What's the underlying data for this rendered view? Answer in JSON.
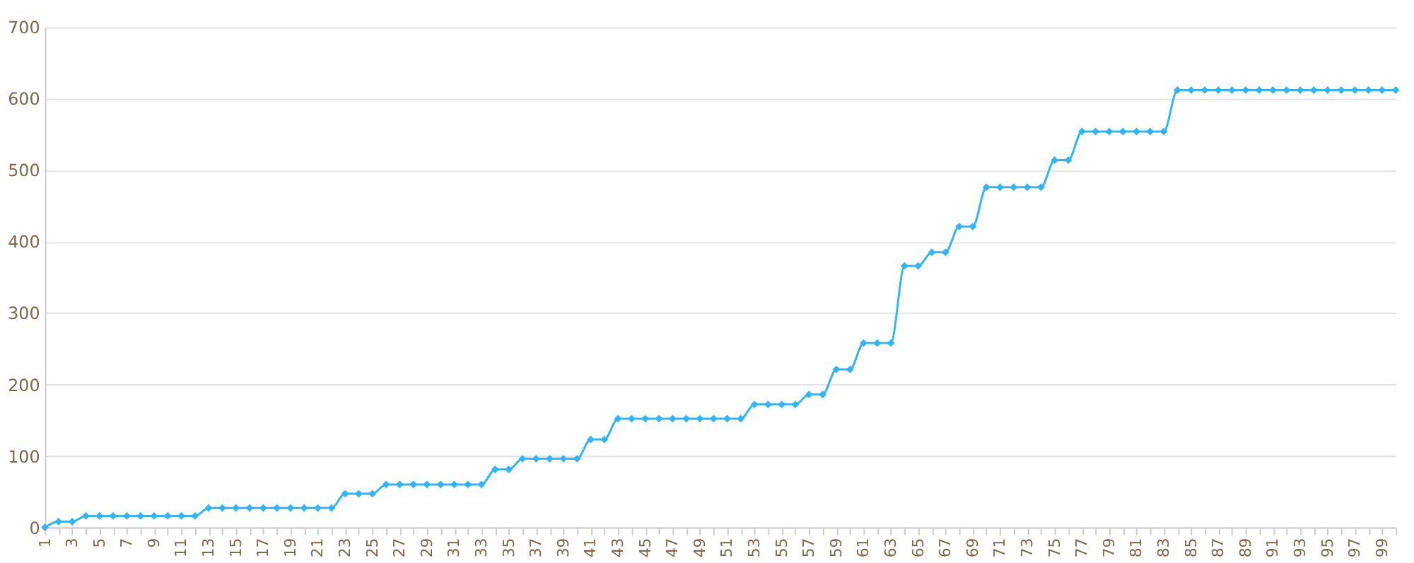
{
  "chart_data": {
    "type": "line",
    "categories": [
      "1",
      null,
      "3",
      null,
      "5",
      null,
      "7",
      null,
      "9",
      null,
      "11",
      null,
      "13",
      null,
      "15",
      null,
      "17",
      null,
      "19",
      null,
      "21",
      null,
      "23",
      null,
      "25",
      null,
      "27",
      null,
      "29",
      null,
      "31",
      null,
      "33",
      null,
      "35",
      null,
      "37",
      null,
      "39",
      null,
      "41",
      null,
      "43",
      null,
      "45",
      null,
      "47",
      null,
      "49",
      null,
      "51",
      null,
      "53",
      null,
      "55",
      null,
      "57",
      null,
      "59",
      null,
      "61",
      null,
      "63",
      null,
      "65",
      null,
      "67",
      null,
      "69",
      null,
      "71",
      null,
      "73",
      null,
      "75",
      null,
      "77",
      null,
      "79",
      null,
      "81",
      null,
      "83",
      null,
      "85",
      null,
      "87",
      null,
      "89",
      null,
      "91",
      null,
      "93",
      null,
      "95",
      null,
      "97",
      null,
      "99",
      null
    ],
    "series": [
      {
        "color": "#33b5f5",
        "values": [
          0,
          8,
          8,
          16,
          16,
          16,
          16,
          16,
          16,
          16,
          16,
          16,
          27,
          27,
          27,
          27,
          27,
          27,
          27,
          27,
          27,
          27,
          47,
          47,
          47,
          60,
          60,
          60,
          60,
          60,
          60,
          60,
          60,
          81,
          81,
          96,
          96,
          96,
          96,
          96,
          123,
          123,
          152,
          152,
          152,
          152,
          152,
          152,
          152,
          152,
          152,
          152,
          172,
          172,
          172,
          172,
          186,
          186,
          221,
          221,
          258,
          258,
          258,
          366,
          366,
          385,
          385,
          421,
          421,
          476,
          476,
          476,
          476,
          476,
          514,
          514,
          554,
          554,
          554,
          554,
          554,
          554,
          554,
          612,
          612,
          612,
          612,
          612,
          612,
          612,
          612,
          612,
          612,
          612,
          612,
          612,
          612,
          612,
          612,
          612
        ]
      }
    ],
    "ylim": [
      0,
      700
    ],
    "yticks": [
      0,
      100,
      200,
      300,
      400,
      500,
      600,
      700
    ],
    "grid": "y",
    "marker": "diamond",
    "line_style": "solid"
  }
}
